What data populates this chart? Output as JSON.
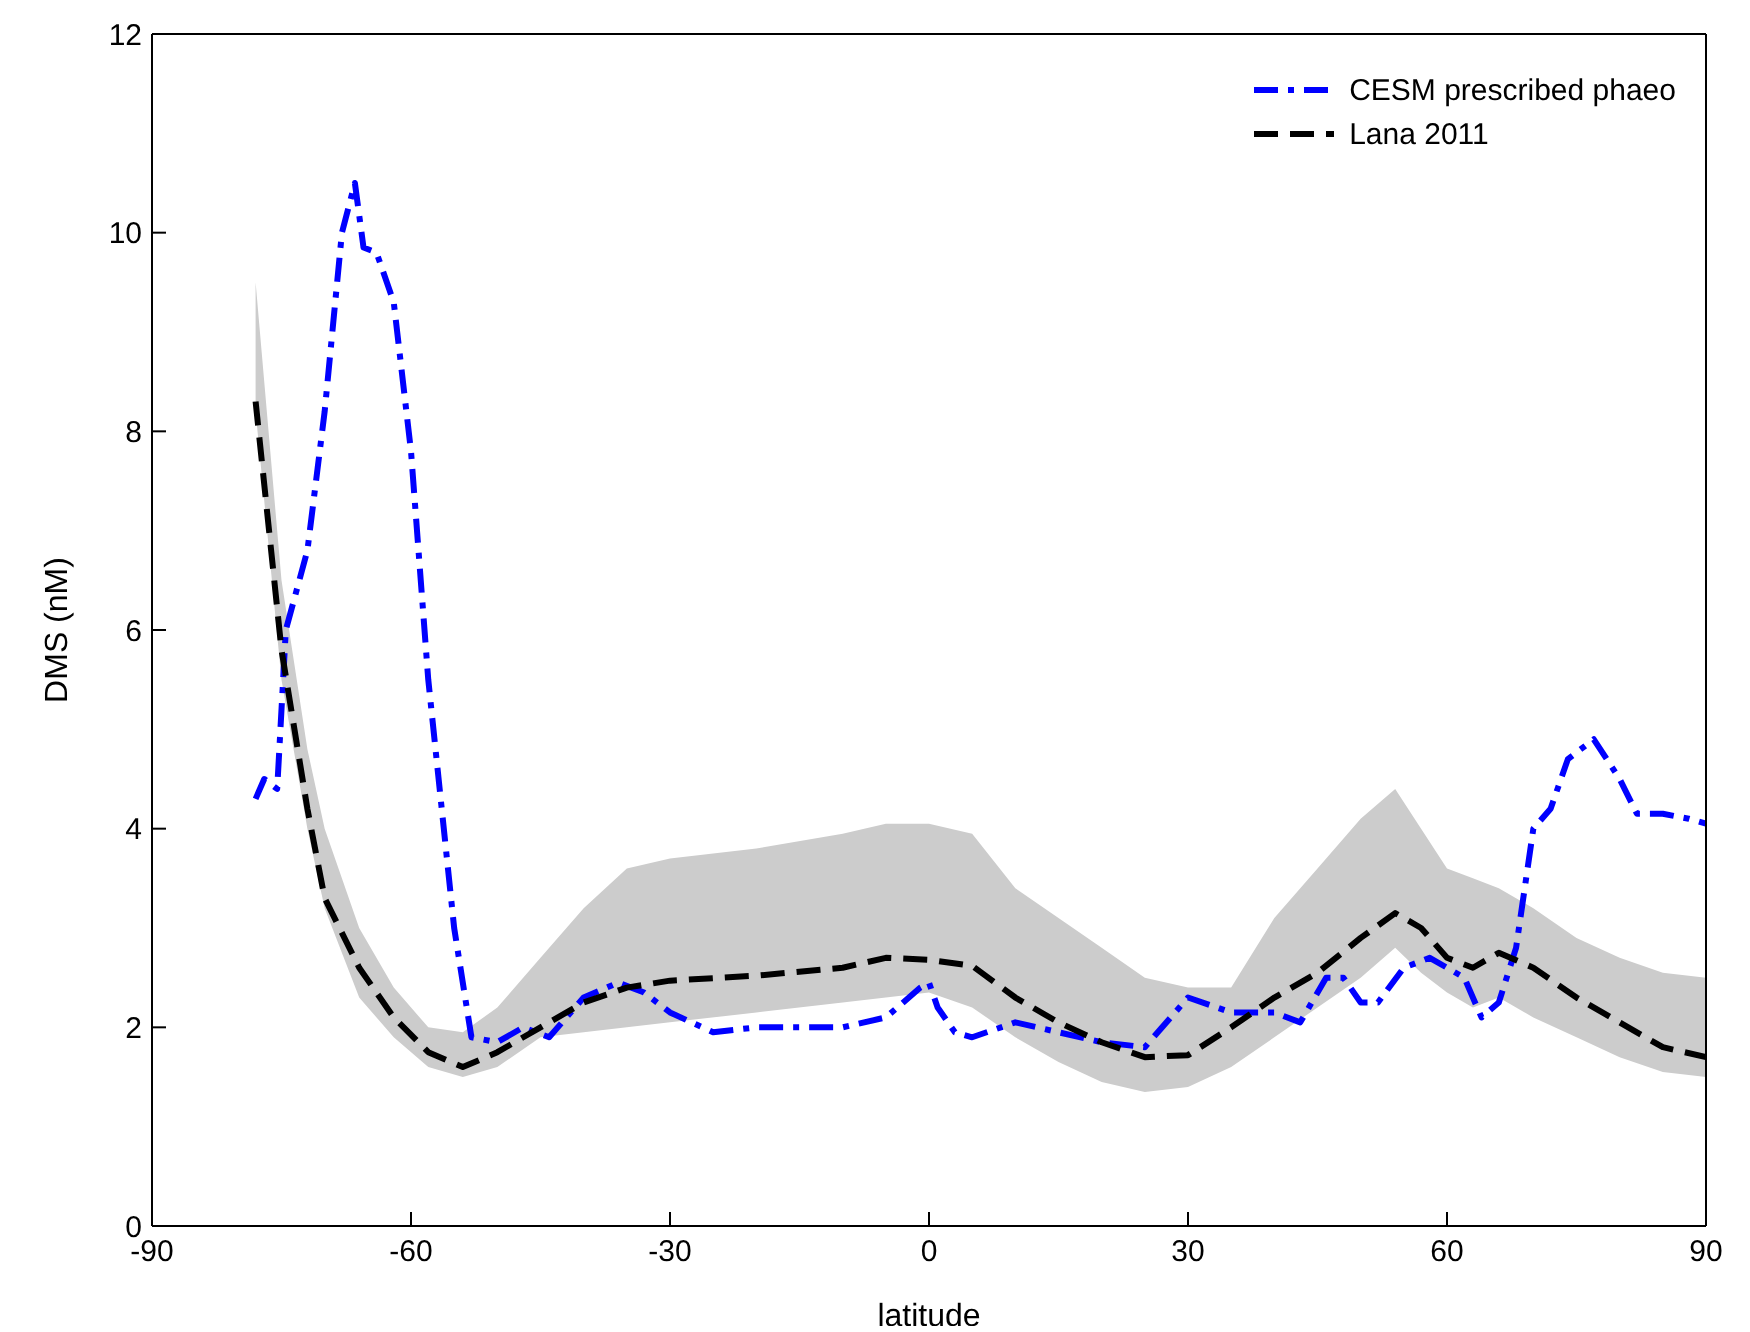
{
  "chart_data": {
    "type": "line",
    "xlabel": "latitude",
    "ylabel": "DMS (nM)",
    "xlim": [
      -90,
      90
    ],
    "xticks": [
      -90,
      -60,
      -30,
      0,
      30,
      60,
      90
    ],
    "ylim": [
      0,
      12
    ],
    "yticks": [
      0,
      2,
      4,
      6,
      8,
      10,
      12
    ],
    "legend": "top right",
    "marker": "none",
    "series": [
      {
        "name": "CESM prescribed phaeo",
        "color": "#0000ff",
        "line_style": "dashdot",
        "x": [
          -78,
          -77,
          -75.5,
          -74.5,
          -72,
          -70,
          -68,
          -66.5,
          -65.5,
          -64,
          -62,
          -60,
          -58,
          -55,
          -53,
          -50,
          -47,
          -44,
          -40,
          -36,
          -33,
          -30,
          -25,
          -20,
          -15,
          -10,
          -5,
          -1,
          0,
          1,
          3,
          5,
          10,
          15,
          20,
          25,
          30,
          35,
          40,
          43,
          46,
          48,
          50,
          52,
          55,
          58,
          62,
          64,
          66,
          68,
          70,
          72,
          74,
          77,
          80,
          82,
          85,
          88,
          90
        ],
        "values": [
          4.3,
          4.5,
          4.4,
          6.0,
          6.8,
          8.2,
          10.0,
          10.5,
          9.85,
          9.8,
          9.3,
          7.8,
          5.5,
          3.0,
          1.9,
          1.85,
          2.0,
          1.9,
          2.3,
          2.45,
          2.35,
          2.15,
          1.95,
          2.0,
          2.0,
          2.0,
          2.1,
          2.4,
          2.45,
          2.2,
          1.95,
          1.9,
          2.05,
          1.95,
          1.85,
          1.8,
          2.3,
          2.15,
          2.15,
          2.05,
          2.5,
          2.5,
          2.25,
          2.25,
          2.6,
          2.7,
          2.5,
          2.1,
          2.25,
          2.8,
          4.0,
          4.2,
          4.7,
          4.9,
          4.5,
          4.15,
          4.15,
          4.1,
          4.05
        ]
      },
      {
        "name": "Lana 2011",
        "color": "#000000",
        "line_style": "dashed",
        "x": [
          -78,
          -75,
          -72,
          -70,
          -66,
          -62,
          -58,
          -54,
          -50,
          -45,
          -40,
          -35,
          -30,
          -20,
          -10,
          -5,
          0,
          5,
          10,
          15,
          20,
          25,
          30,
          35,
          40,
          45,
          50,
          54,
          57,
          60,
          63,
          66,
          70,
          75,
          80,
          85,
          90
        ],
        "values": [
          8.3,
          5.8,
          4.2,
          3.3,
          2.6,
          2.1,
          1.75,
          1.6,
          1.75,
          2.0,
          2.25,
          2.4,
          2.47,
          2.52,
          2.6,
          2.7,
          2.68,
          2.62,
          2.3,
          2.05,
          1.85,
          1.7,
          1.72,
          2.0,
          2.3,
          2.55,
          2.9,
          3.15,
          3.0,
          2.7,
          2.6,
          2.75,
          2.6,
          2.3,
          2.05,
          1.8,
          1.7
        ],
        "lower": [
          8.2,
          5.5,
          4.0,
          3.2,
          2.3,
          1.9,
          1.6,
          1.5,
          1.6,
          1.9,
          1.95,
          2.0,
          2.05,
          2.15,
          2.25,
          2.3,
          2.35,
          2.2,
          1.9,
          1.65,
          1.45,
          1.35,
          1.4,
          1.6,
          1.9,
          2.2,
          2.5,
          2.8,
          2.55,
          2.35,
          2.2,
          2.3,
          2.1,
          1.9,
          1.7,
          1.55,
          1.5
        ],
        "upper": [
          9.5,
          6.5,
          4.8,
          4.0,
          3.0,
          2.4,
          2.0,
          1.95,
          2.2,
          2.7,
          3.2,
          3.6,
          3.7,
          3.8,
          3.95,
          4.05,
          4.05,
          3.95,
          3.4,
          3.1,
          2.8,
          2.5,
          2.4,
          2.4,
          3.1,
          3.6,
          4.1,
          4.4,
          4.0,
          3.6,
          3.5,
          3.4,
          3.2,
          2.9,
          2.7,
          2.55,
          2.5
        ]
      }
    ]
  }
}
